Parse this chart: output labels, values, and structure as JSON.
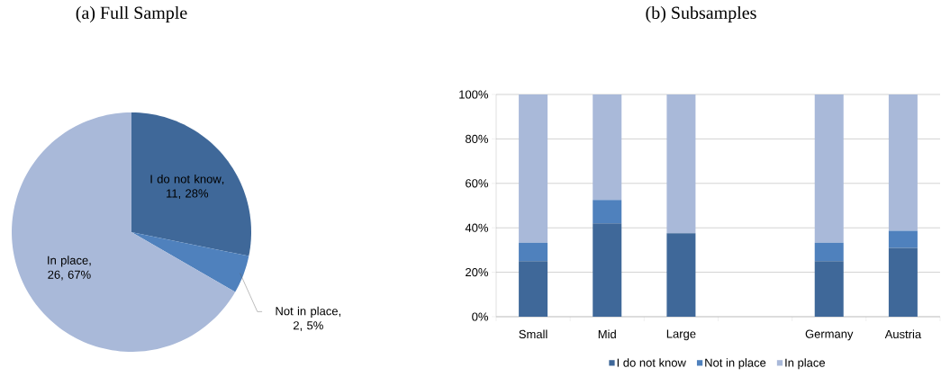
{
  "chart_data": [
    {
      "type": "pie",
      "title": "(a) Full Sample",
      "categories": [
        "I do not know",
        "Not in place",
        "In place"
      ],
      "values": [
        11,
        2,
        26
      ],
      "colors": [
        "#3f6899",
        "#4f81bd",
        "#a9b9d9"
      ],
      "value_labels": [
        ", 11, 28%",
        ", 2, 5%",
        ", 26, 67%"
      ]
    },
    {
      "type": "bar",
      "title": "(b) Subsamples",
      "categories": [
        "Small",
        "Mid",
        "Large",
        null,
        "Germany",
        "Austria"
      ],
      "stacked": true,
      "series": [
        {
          "name": "I do not know",
          "color": "#3f6899",
          "values": [
            25,
            42,
            37.5,
            null,
            25,
            31
          ]
        },
        {
          "name": "Not in place",
          "color": "#4f81bd",
          "values": [
            8.3,
            10.5,
            0,
            null,
            8.3,
            7.7
          ]
        },
        {
          "name": "In place",
          "color": "#a9b9d9",
          "values": [
            66.7,
            47.5,
            62.5,
            null,
            66.7,
            61.3
          ]
        }
      ],
      "ylim": [
        0,
        100
      ],
      "yticks": [
        {
          "value": 0,
          "label": "0%"
        },
        {
          "value": 20,
          "label": "20%"
        },
        {
          "value": 40,
          "label": "40%"
        },
        {
          "value": 60,
          "label": "60%"
        },
        {
          "value": 80,
          "label": "80%"
        },
        {
          "value": 100,
          "label": "100%"
        }
      ],
      "grid": "y",
      "legend": "bottom"
    }
  ]
}
